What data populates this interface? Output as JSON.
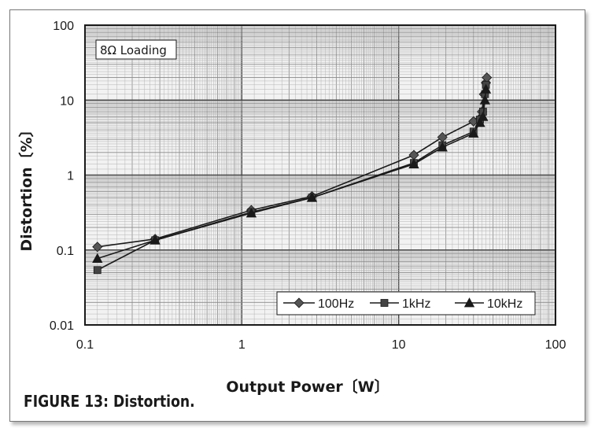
{
  "caption": "FIGURE 13: Distortion.",
  "colors": {
    "ink": "#1a1a1a",
    "grid": "#8a8a8a",
    "background": "#f2f2f2"
  },
  "chart_data": {
    "type": "line",
    "title": "",
    "xlabel": "Output Power〔W〕",
    "ylabel": "Distortion〔%〕",
    "annotation": "8Ω Loading",
    "xscale": "log",
    "yscale": "log",
    "xlim": [
      0.1,
      100
    ],
    "ylim": [
      0.01,
      100
    ],
    "xticks": [
      {
        "value": 0.1,
        "label": "0.1"
      },
      {
        "value": 1,
        "label": "1"
      },
      {
        "value": 10,
        "label": "10"
      },
      {
        "value": 100,
        "label": "100"
      }
    ],
    "yticks": [
      {
        "value": 0.01,
        "label": "0.01"
      },
      {
        "value": 0.1,
        "label": "0.1"
      },
      {
        "value": 1,
        "label": "1"
      },
      {
        "value": 10,
        "label": "10"
      },
      {
        "value": 100,
        "label": "100"
      }
    ],
    "grid": true,
    "legend_position": "bottom-right",
    "series": [
      {
        "name": "100Hz",
        "marker": "diamond",
        "x": [
          0.12,
          0.28,
          1.15,
          2.8,
          12.5,
          19,
          30,
          34,
          35,
          36,
          36.5
        ],
        "y": [
          0.11,
          0.14,
          0.34,
          0.52,
          1.85,
          3.2,
          5.2,
          7.0,
          12,
          17,
          20
        ]
      },
      {
        "name": "1kHz",
        "marker": "square",
        "x": [
          0.12,
          0.28,
          1.15,
          2.8,
          12.5,
          19,
          30,
          33,
          34.5,
          35.5,
          36
        ],
        "y": [
          0.054,
          0.135,
          0.32,
          0.5,
          1.45,
          2.5,
          3.8,
          5.5,
          7,
          12,
          16
        ]
      },
      {
        "name": "10kHz",
        "marker": "triangle",
        "x": [
          0.12,
          0.28,
          1.15,
          2.8,
          12.5,
          19,
          30,
          33,
          34.5,
          35.5,
          36
        ],
        "y": [
          0.077,
          0.135,
          0.31,
          0.5,
          1.4,
          2.35,
          3.6,
          5.0,
          6.0,
          10,
          14
        ]
      }
    ]
  }
}
